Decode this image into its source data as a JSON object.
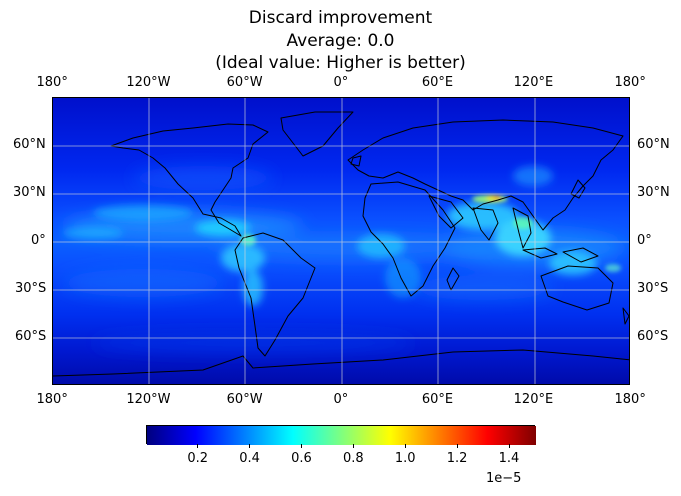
{
  "title": {
    "line1": "Discard improvement",
    "line2": "Average: 0.0",
    "line3": "(Ideal value: Higher is better)"
  },
  "map": {
    "projection": "plate-carree",
    "lon_range": [
      -180,
      180
    ],
    "lat_range": [
      -90,
      90
    ],
    "gridlines": true,
    "coastlines": true,
    "colormap": "jet",
    "lon_ticks": [
      {
        "value": -180,
        "label": "180°"
      },
      {
        "value": -120,
        "label": "120°W"
      },
      {
        "value": -60,
        "label": "60°W"
      },
      {
        "value": 0,
        "label": "0°"
      },
      {
        "value": 60,
        "label": "60°E"
      },
      {
        "value": 120,
        "label": "120°E"
      },
      {
        "value": 180,
        "label": "180°"
      }
    ],
    "lat_ticks": [
      {
        "value": 60,
        "label": "60°N"
      },
      {
        "value": 30,
        "label": "30°N"
      },
      {
        "value": 0,
        "label": "0°"
      },
      {
        "value": -30,
        "label": "30°S"
      },
      {
        "value": -60,
        "label": "60°S"
      }
    ],
    "hotspots": [
      {
        "name": "south-asia",
        "lon": 92,
        "lat": 27,
        "level": 1.0
      },
      {
        "name": "maritime-continent",
        "lon": 110,
        "lat": 5,
        "level": 0.55
      },
      {
        "name": "equatorial-africa",
        "lon": 22,
        "lat": 2,
        "level": 0.45
      },
      {
        "name": "amazon",
        "lon": -62,
        "lat": -5,
        "level": 0.45
      },
      {
        "name": "central-america",
        "lon": -88,
        "lat": 12,
        "level": 0.5
      },
      {
        "name": "itcz-pacific",
        "lon": -140,
        "lat": 8,
        "level": 0.35
      },
      {
        "name": "new-guinea",
        "lon": 143,
        "lat": -6,
        "level": 0.5
      }
    ]
  },
  "colorbar": {
    "vmin": 0.0,
    "vmax": 1.5,
    "ticks": [
      "0.2",
      "0.4",
      "0.6",
      "0.8",
      "1.0",
      "1.2",
      "1.4"
    ],
    "tick_values": [
      0.2,
      0.4,
      0.6,
      0.8,
      1.0,
      1.2,
      1.4
    ],
    "multiplier": "1e−5",
    "colors": [
      "#00007f",
      "#0000ff",
      "#007fff",
      "#00ffff",
      "#7fff7f",
      "#ffff00",
      "#ff7f00",
      "#ff0000",
      "#7f0000"
    ]
  }
}
